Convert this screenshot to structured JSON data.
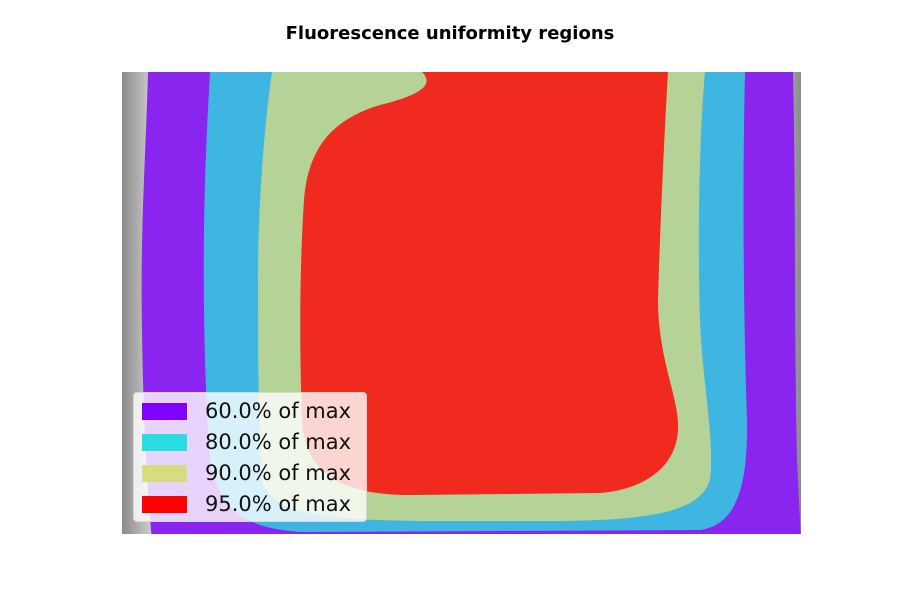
{
  "chart_data": {
    "type": "heatmap",
    "title": "Fluorescence uniformity regions",
    "xlabel": "",
    "ylabel": "",
    "axes_visible": false,
    "background": "grayscale fluorescence intensity image",
    "legend_position": "lower-left",
    "regions": [
      {
        "name": "60.0% of max",
        "threshold": 0.6,
        "color": "#8a24ef",
        "swatch": "#8000ff"
      },
      {
        "name": "80.0% of max",
        "threshold": 0.8,
        "color": "#3fb6e2",
        "swatch": "#29dde0"
      },
      {
        "name": "90.0% of max",
        "threshold": 0.9,
        "color": "#b5d396",
        "swatch": "#d4dd80"
      },
      {
        "name": "95.0% of max",
        "threshold": 0.95,
        "color": "#f02a1e",
        "swatch": "#ff0000"
      }
    ]
  }
}
